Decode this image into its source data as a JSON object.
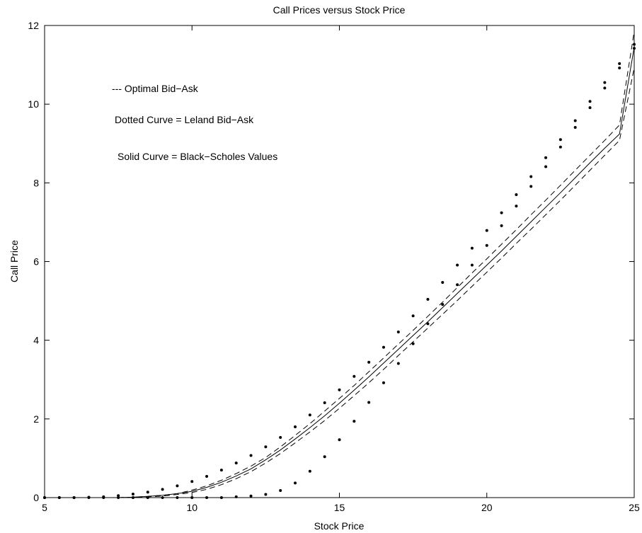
{
  "chart_data": {
    "type": "line",
    "title": "Call Prices versus Stock Price",
    "xlabel": "Stock Price",
    "ylabel": "Call Price",
    "xlim": [
      5,
      25
    ],
    "ylim": [
      0,
      12
    ],
    "xticks": [
      5,
      10,
      15,
      20,
      25
    ],
    "yticks": [
      0,
      2,
      4,
      6,
      8,
      10,
      12
    ],
    "grid": false,
    "annotations": [
      "--- Optimal Bid−Ask",
      "Dotted Curve = Leland Bid−Ask",
      "Solid Curve = Black−Scholes Values"
    ],
    "x": [
      5,
      5.5,
      6,
      6.5,
      7,
      7.5,
      8,
      8.5,
      9,
      9.5,
      10,
      10.5,
      11,
      11.5,
      12,
      12.5,
      13,
      13.5,
      14,
      14.5,
      15,
      15.5,
      16,
      16.5,
      17,
      17.5,
      18,
      18.5,
      19,
      19.5,
      20,
      20.5,
      21,
      21.5,
      22,
      22.5,
      23,
      23.5,
      24,
      24.5,
      25
    ],
    "series": [
      {
        "style": "solid",
        "values": [
          0,
          0,
          0,
          0,
          0,
          0,
          0.01,
          0.03,
          0.06,
          0.1,
          0.16,
          0.26,
          0.39,
          0.55,
          0.73,
          0.96,
          1.21,
          1.49,
          1.78,
          2.08,
          2.4,
          2.73,
          3.07,
          3.42,
          3.77,
          4.12,
          4.47,
          4.83,
          5.19,
          5.55,
          5.91,
          6.27,
          6.64,
          7.01,
          7.38,
          7.75,
          8.13,
          8.51,
          8.88,
          9.24,
          11.45
        ]
      },
      {
        "style": "dashed",
        "values": [
          0,
          0,
          0,
          0,
          0,
          0,
          0.01,
          0.03,
          0.06,
          0.1,
          0.19,
          0.3,
          0.44,
          0.61,
          0.8,
          1.02,
          1.29,
          1.58,
          1.88,
          2.2,
          2.52,
          2.85,
          3.2,
          3.55,
          3.9,
          4.25,
          4.61,
          4.97,
          5.34,
          5.71,
          6.07,
          6.44,
          6.81,
          7.19,
          7.56,
          7.94,
          8.32,
          8.7,
          9.08,
          9.47,
          11.85
        ]
      },
      {
        "style": "dashed",
        "values": [
          0,
          0,
          0,
          0,
          0,
          0,
          0.01,
          0.02,
          0.04,
          0.08,
          0.13,
          0.21,
          0.33,
          0.48,
          0.66,
          0.88,
          1.12,
          1.39,
          1.67,
          1.96,
          2.27,
          2.59,
          2.92,
          3.26,
          3.61,
          3.96,
          4.31,
          4.66,
          5.01,
          5.37,
          5.73,
          6.09,
          6.46,
          6.82,
          7.19,
          7.56,
          7.94,
          8.32,
          8.7,
          9.08,
          10.92
        ]
      },
      {
        "style": "dotted",
        "values": [
          0,
          0,
          0,
          0.01,
          0.02,
          0.05,
          0.09,
          0.14,
          0.21,
          0.3,
          0.41,
          0.54,
          0.7,
          0.88,
          1.07,
          1.29,
          1.53,
          1.8,
          2.1,
          2.41,
          2.74,
          3.08,
          3.44,
          3.82,
          4.21,
          4.62,
          5.04,
          5.47,
          5.91,
          6.34,
          6.79,
          7.24,
          7.7,
          8.16,
          8.64,
          9.1,
          9.58,
          10.07,
          10.55,
          11.03,
          11.52
        ]
      },
      {
        "style": "dotted",
        "values": [
          0,
          0,
          0,
          0,
          0,
          0,
          0,
          0,
          0,
          0,
          0,
          0,
          0,
          0.02,
          0.04,
          0.08,
          0.18,
          0.37,
          0.67,
          1.04,
          1.47,
          1.94,
          2.42,
          2.92,
          3.41,
          3.91,
          4.42,
          4.91,
          5.41,
          5.91,
          6.41,
          6.91,
          7.41,
          7.91,
          8.41,
          8.91,
          9.41,
          9.91,
          10.41,
          10.92,
          11.42
        ]
      }
    ]
  }
}
